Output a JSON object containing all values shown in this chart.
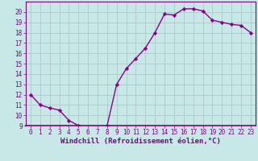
{
  "x": [
    0,
    1,
    2,
    3,
    4,
    5,
    6,
    7,
    8,
    9,
    10,
    11,
    12,
    13,
    14,
    15,
    16,
    17,
    18,
    19,
    20,
    21,
    22,
    23
  ],
  "y": [
    12,
    11,
    10.7,
    10.5,
    9.5,
    9,
    8.8,
    8.7,
    9,
    13,
    14.5,
    15.5,
    16.5,
    18,
    19.8,
    19.7,
    20.3,
    20.3,
    20.1,
    19.2,
    19.0,
    18.8,
    18.7,
    18
  ],
  "line_color": "#8b008b",
  "marker": "D",
  "marker_size": 2.2,
  "bg_color": "#c8e8e8",
  "grid_color": "#b0c8c8",
  "xlabel": "Windchill (Refroidissement éolien,°C)",
  "ylim": [
    9,
    21
  ],
  "xlim": [
    -0.5,
    23.5
  ],
  "yticks": [
    9,
    10,
    11,
    12,
    13,
    14,
    15,
    16,
    17,
    18,
    19,
    20
  ],
  "xticks": [
    0,
    1,
    2,
    3,
    4,
    5,
    6,
    7,
    8,
    9,
    10,
    11,
    12,
    13,
    14,
    15,
    16,
    17,
    18,
    19,
    20,
    21,
    22,
    23
  ],
  "label_color": "#800080",
  "tick_fontsize": 5.5,
  "xlabel_fontsize": 6.5,
  "linewidth": 1.0
}
